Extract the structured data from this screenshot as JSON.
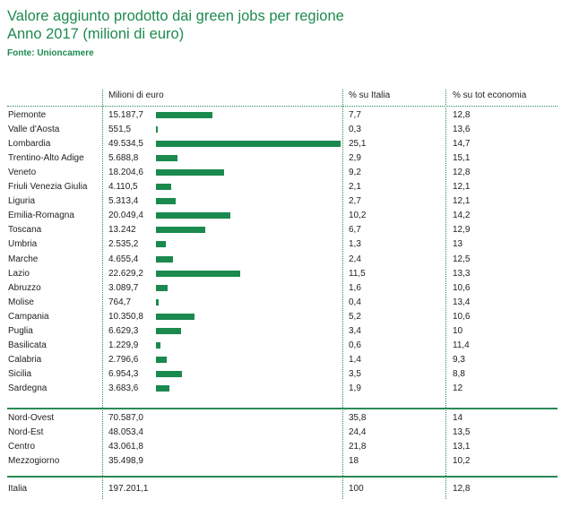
{
  "title_line1": "Valore aggiunto prodotto dai green jobs per regione",
  "title_line2": "Anno 2017 (milioni di euro)",
  "source": "Fonte: Unioncamere",
  "headers": {
    "value": "Milioni di euro",
    "pct_italia": "% su Italia",
    "pct_economia": "% su tot economia"
  },
  "colors": {
    "accent": "#1e8a4f",
    "bar": "#1a8a4e"
  },
  "chart_data": {
    "type": "table",
    "regions": [
      {
        "name": "Piemonte",
        "value": "15.187,7",
        "num": 15187.7,
        "pct_italia": "7,7",
        "pct_economia": "12,8"
      },
      {
        "name": "Valle d'Aosta",
        "value": "551,5",
        "num": 551.5,
        "pct_italia": "0,3",
        "pct_economia": "13,6"
      },
      {
        "name": "Lombardia",
        "value": "49.534,5",
        "num": 49534.5,
        "pct_italia": "25,1",
        "pct_economia": "14,7"
      },
      {
        "name": "Trentino-Alto Adige",
        "value": "5.688,8",
        "num": 5688.8,
        "pct_italia": "2,9",
        "pct_economia": "15,1"
      },
      {
        "name": "Veneto",
        "value": "18.204,6",
        "num": 18204.6,
        "pct_italia": "9,2",
        "pct_economia": "12,8"
      },
      {
        "name": "Friuli Venezia Giulia",
        "value": "4.110,5",
        "num": 4110.5,
        "pct_italia": "2,1",
        "pct_economia": "12,1"
      },
      {
        "name": "Liguria",
        "value": "5.313,4",
        "num": 5313.4,
        "pct_italia": "2,7",
        "pct_economia": "12,1"
      },
      {
        "name": "Emilia-Romagna",
        "value": "20.049,4",
        "num": 20049.4,
        "pct_italia": "10,2",
        "pct_economia": "14,2"
      },
      {
        "name": "Toscana",
        "value": "13.242",
        "num": 13242,
        "pct_italia": "6,7",
        "pct_economia": "12,9"
      },
      {
        "name": "Umbria",
        "value": "2.535,2",
        "num": 2535.2,
        "pct_italia": "1,3",
        "pct_economia": "13"
      },
      {
        "name": "Marche",
        "value": "4.655,4",
        "num": 4655.4,
        "pct_italia": "2,4",
        "pct_economia": "12,5"
      },
      {
        "name": "Lazio",
        "value": "22.629,2",
        "num": 22629.2,
        "pct_italia": "11,5",
        "pct_economia": "13,3"
      },
      {
        "name": "Abruzzo",
        "value": "3.089,7",
        "num": 3089.7,
        "pct_italia": "1,6",
        "pct_economia": "10,6"
      },
      {
        "name": "Molise",
        "value": "764,7",
        "num": 764.7,
        "pct_italia": "0,4",
        "pct_economia": "13,4"
      },
      {
        "name": "Campania",
        "value": "10.350,8",
        "num": 10350.8,
        "pct_italia": "5,2",
        "pct_economia": "10,6"
      },
      {
        "name": "Puglia",
        "value": "6.629,3",
        "num": 6629.3,
        "pct_italia": "3,4",
        "pct_economia": "10"
      },
      {
        "name": "Basilicata",
        "value": "1.229,9",
        "num": 1229.9,
        "pct_italia": "0,6",
        "pct_economia": "11,4"
      },
      {
        "name": "Calabria",
        "value": "2.796,6",
        "num": 2796.6,
        "pct_italia": "1,4",
        "pct_economia": "9,3"
      },
      {
        "name": "Sicilia",
        "value": "6.954,3",
        "num": 6954.3,
        "pct_italia": "3,5",
        "pct_economia": "8,8"
      },
      {
        "name": "Sardegna",
        "value": "3.683,6",
        "num": 3683.6,
        "pct_italia": "1,9",
        "pct_economia": "12"
      }
    ],
    "macro_areas": [
      {
        "name": "Nord-Ovest",
        "value": "70.587,0",
        "pct_italia": "35,8",
        "pct_economia": "14"
      },
      {
        "name": "Nord-Est",
        "value": "48.053,4",
        "pct_italia": "24,4",
        "pct_economia": "13,5"
      },
      {
        "name": "Centro",
        "value": "43.061,8",
        "pct_italia": "21,8",
        "pct_economia": "13,1"
      },
      {
        "name": "Mezzogiorno",
        "value": "35.498,9",
        "pct_italia": "18",
        "pct_economia": "10,2"
      }
    ],
    "total": {
      "name": "Italia",
      "value": "197.201,1",
      "pct_italia": "100",
      "pct_economia": "12,8"
    }
  }
}
